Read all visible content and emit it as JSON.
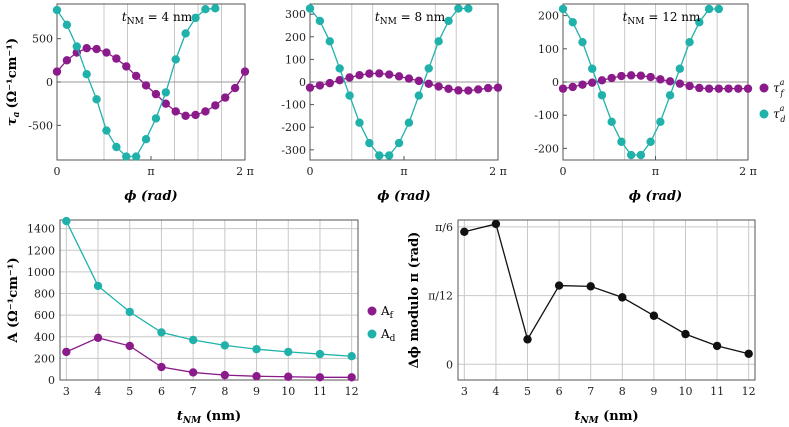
{
  "colors": {
    "purple": "#8B1A8B",
    "teal": "#20B2AA",
    "black": "#111111"
  },
  "chart_data": [
    {
      "type": "scatter",
      "annotation_prefix": "t",
      "annotation_sub": "NM",
      "annotation_rest": " = 4 nm",
      "xlabel": "ϕ (rad)",
      "ylabel_main": "τ",
      "ylabel_sub": "a",
      "ylabel_units": "(Ω⁻¹cm⁻¹)",
      "xlim": [
        0,
        6.2832
      ],
      "ylim": [
        -900,
        900
      ],
      "xticks": [
        "0",
        "π",
        "2 π"
      ],
      "yticks": [
        500,
        0,
        -500
      ],
      "series": [
        {
          "name": "τf",
          "values": [
            [
              0,
              120
            ],
            [
              0.3307,
              250
            ],
            [
              0.6614,
              340
            ],
            [
              0.9921,
              390
            ],
            [
              1.3228,
              380
            ],
            [
              1.6535,
              340
            ],
            [
              1.9842,
              270
            ],
            [
              2.3149,
              180
            ],
            [
              2.6456,
              70
            ],
            [
              2.9762,
              -40
            ],
            [
              3.3069,
              -140
            ],
            [
              3.6376,
              -250
            ],
            [
              3.9683,
              -340
            ],
            [
              4.299,
              -390
            ],
            [
              4.6297,
              -380
            ],
            [
              4.9604,
              -340
            ],
            [
              5.2911,
              -270
            ],
            [
              5.6218,
              -180
            ],
            [
              5.9525,
              -70
            ],
            [
              6.2832,
              120
            ]
          ]
        },
        {
          "name": "τd",
          "values": [
            [
              0,
              830
            ],
            [
              0.3307,
              660
            ],
            [
              0.6614,
              410
            ],
            [
              0.9921,
              90
            ],
            [
              1.3228,
              -200
            ],
            [
              1.6535,
              -560
            ],
            [
              1.9842,
              -750
            ],
            [
              2.3149,
              -860
            ],
            [
              2.6456,
              -860
            ],
            [
              2.9762,
              -660
            ],
            [
              3.3069,
              -420
            ],
            [
              3.6376,
              -120
            ],
            [
              3.9683,
              260
            ],
            [
              4.299,
              560
            ],
            [
              4.6297,
              740
            ],
            [
              4.9604,
              840
            ],
            [
              5.2911,
              850
            ]
          ]
        }
      ]
    },
    {
      "type": "scatter",
      "annotation_prefix": "t",
      "annotation_sub": "NM",
      "annotation_rest": " = 8 nm",
      "xlabel": "ϕ (rad)",
      "xlim": [
        0,
        6.2832
      ],
      "ylim": [
        -345,
        345
      ],
      "xticks": [
        "0",
        "π",
        "2 π"
      ],
      "yticks": [
        300,
        200,
        100,
        0,
        -100,
        -200,
        -300
      ],
      "series": [
        {
          "name": "τf",
          "values": [
            [
              0,
              -25
            ],
            [
              0.3307,
              -15
            ],
            [
              0.6614,
              -5
            ],
            [
              0.9921,
              8
            ],
            [
              1.3228,
              20
            ],
            [
              1.6535,
              30
            ],
            [
              1.9842,
              37
            ],
            [
              2.3149,
              38
            ],
            [
              2.6456,
              33
            ],
            [
              2.9762,
              25
            ],
            [
              3.3069,
              15
            ],
            [
              3.6376,
              5
            ],
            [
              3.9683,
              -8
            ],
            [
              4.299,
              -20
            ],
            [
              4.6297,
              -30
            ],
            [
              4.9604,
              -37
            ],
            [
              5.2911,
              -38
            ],
            [
              5.6218,
              -33
            ],
            [
              5.9525,
              -27
            ],
            [
              6.2832,
              -25
            ]
          ]
        },
        {
          "name": "τd",
          "values": [
            [
              0,
              325
            ],
            [
              0.3307,
              270
            ],
            [
              0.6614,
              180
            ],
            [
              0.9921,
              60
            ],
            [
              1.3228,
              -60
            ],
            [
              1.6535,
              -180
            ],
            [
              1.9842,
              -270
            ],
            [
              2.3149,
              -325
            ],
            [
              2.6456,
              -325
            ],
            [
              2.9762,
              -270
            ],
            [
              3.3069,
              -180
            ],
            [
              3.6376,
              -60
            ],
            [
              3.9683,
              60
            ],
            [
              4.299,
              180
            ],
            [
              4.6297,
              270
            ],
            [
              4.9604,
              325
            ],
            [
              5.2911,
              325
            ]
          ]
        }
      ]
    },
    {
      "type": "scatter",
      "annotation_prefix": "t",
      "annotation_sub": "NM",
      "annotation_rest": " = 12 nm",
      "xlabel": "ϕ (rad)",
      "xlim": [
        0,
        6.2832
      ],
      "ylim": [
        -235,
        235
      ],
      "xticks": [
        "0",
        "π",
        "2 π"
      ],
      "yticks": [
        200,
        100,
        0,
        -100,
        -200
      ],
      "legend": [
        {
          "label_main": "τ",
          "label_sub": "f",
          "label_sup": "a",
          "color_key": "purple"
        },
        {
          "label_main": "τ",
          "label_sub": "d",
          "label_sup": "a",
          "color_key": "teal"
        }
      ],
      "series": [
        {
          "name": "τf",
          "values": [
            [
              0,
              -20
            ],
            [
              0.3307,
              -15
            ],
            [
              0.6614,
              -8
            ],
            [
              0.9921,
              -2
            ],
            [
              1.3228,
              5
            ],
            [
              1.6535,
              12
            ],
            [
              1.9842,
              18
            ],
            [
              2.3149,
              20
            ],
            [
              2.6456,
              19
            ],
            [
              2.9762,
              15
            ],
            [
              3.3069,
              8
            ],
            [
              3.6376,
              2
            ],
            [
              3.9683,
              -5
            ],
            [
              4.299,
              -12
            ],
            [
              4.6297,
              -18
            ],
            [
              4.9604,
              -20
            ],
            [
              5.2911,
              -20
            ],
            [
              5.6218,
              -20
            ],
            [
              5.9525,
              -20
            ],
            [
              6.2832,
              -20
            ]
          ]
        },
        {
          "name": "τd",
          "values": [
            [
              0,
              220
            ],
            [
              0.3307,
              180
            ],
            [
              0.6614,
              120
            ],
            [
              0.9921,
              40
            ],
            [
              1.3228,
              -40
            ],
            [
              1.6535,
              -120
            ],
            [
              1.9842,
              -180
            ],
            [
              2.3149,
              -220
            ],
            [
              2.6456,
              -220
            ],
            [
              2.9762,
              -180
            ],
            [
              3.3069,
              -120
            ],
            [
              3.6376,
              -40
            ],
            [
              3.9683,
              40
            ],
            [
              4.299,
              120
            ],
            [
              4.6297,
              180
            ],
            [
              4.9604,
              220
            ],
            [
              5.2911,
              220
            ]
          ]
        }
      ]
    },
    {
      "type": "line",
      "xlabel_main": "t",
      "xlabel_sub": "NM",
      "xlabel_rest": " (nm)",
      "ylabel": "A (Ω⁻¹cm⁻¹)",
      "xlim": [
        2.8,
        12.2
      ],
      "ylim": [
        0,
        1480
      ],
      "xticks": [
        3,
        4,
        5,
        6,
        7,
        8,
        9,
        10,
        11,
        12
      ],
      "yticks": [
        0,
        200,
        400,
        600,
        800,
        1000,
        1200,
        1400
      ],
      "categories": [
        3,
        4,
        5,
        6,
        7,
        8,
        9,
        10,
        11,
        12
      ],
      "legend": [
        {
          "label_main": "A",
          "label_sub": "f",
          "color_key": "purple"
        },
        {
          "label_main": "A",
          "label_sub": "d",
          "color_key": "teal"
        }
      ],
      "series": [
        {
          "name": "Af",
          "values": [
            260,
            390,
            315,
            120,
            70,
            45,
            35,
            30,
            25,
            25
          ]
        },
        {
          "name": "Ad",
          "values": [
            1470,
            870,
            630,
            440,
            370,
            320,
            285,
            260,
            240,
            220
          ]
        }
      ]
    },
    {
      "type": "line",
      "xlabel_main": "t",
      "xlabel_sub": "NM",
      "xlabel_rest": " (nm)",
      "ylabel": "Δϕ modulo π (rad)",
      "xlim": [
        2.8,
        12.2
      ],
      "ylim": [
        -0.06,
        0.55
      ],
      "xticks": [
        3,
        4,
        5,
        6,
        7,
        8,
        9,
        10,
        11,
        12
      ],
      "yticks": [
        {
          "value": 0.5236,
          "label": "π/6"
        },
        {
          "value": 0.2618,
          "label": "π/12"
        },
        {
          "value": 0,
          "label": "0"
        }
      ],
      "categories": [
        3,
        4,
        5,
        6,
        7,
        8,
        9,
        10,
        11,
        12
      ],
      "series": [
        {
          "name": "Δϕ",
          "values": [
            0.505,
            0.535,
            0.095,
            0.3,
            0.297,
            0.255,
            0.185,
            0.115,
            0.07,
            0.04
          ]
        }
      ]
    }
  ]
}
